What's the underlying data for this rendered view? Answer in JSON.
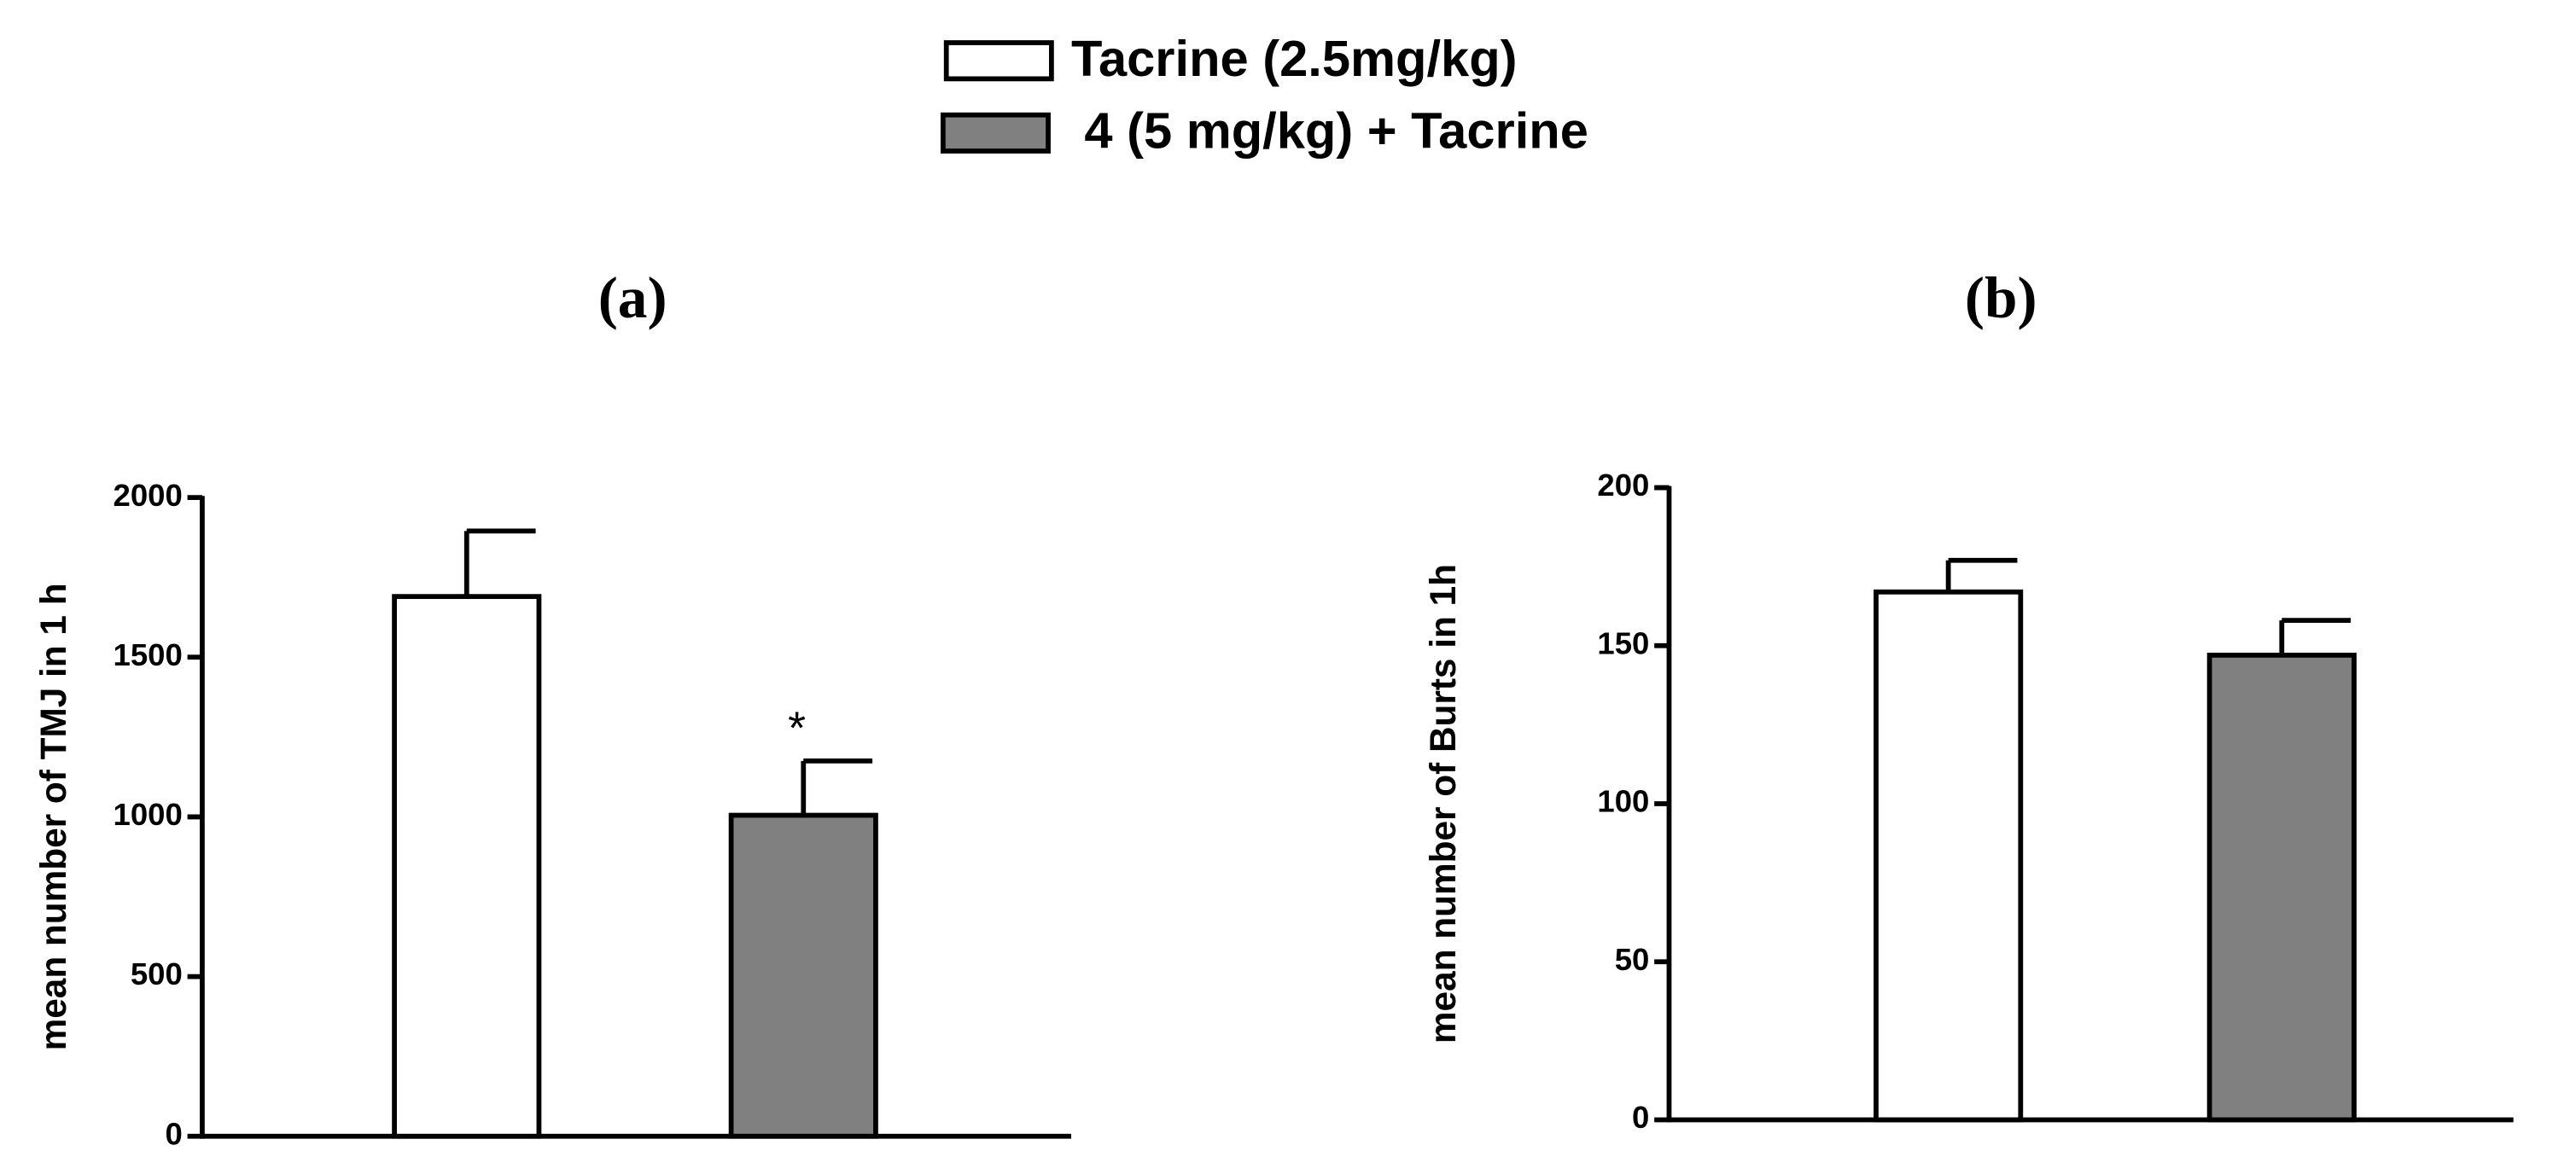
{
  "chart_data": [
    {
      "type": "bar",
      "title": "(a)",
      "ylabel": "mean number of TMJ in 1 h",
      "categories": [
        null
      ],
      "series": [
        {
          "name": "Tacrine (2.5mg/kg)",
          "color": "#ffffff",
          "values": [
            1690
          ],
          "errors": [
            205
          ]
        },
        {
          "name": "4 (5 mg/kg) + Tacrine",
          "color": "#808080",
          "values": [
            1005
          ],
          "errors": [
            170
          ]
        }
      ],
      "annotations": [
        "*"
      ],
      "ylim": [
        0,
        2000
      ],
      "yticks": [
        0,
        500,
        1000,
        1500,
        2000
      ]
    },
    {
      "type": "bar",
      "title": "(b)",
      "ylabel": "mean number of Burts in 1h",
      "categories": [
        null
      ],
      "series": [
        {
          "color": "#ffffff",
          "values": [
            167
          ],
          "errors": [
            10
          ]
        },
        {
          "color": "#808080",
          "values": [
            147
          ],
          "errors": [
            11
          ]
        }
      ],
      "ylim": [
        0,
        200
      ],
      "yticks": [
        0,
        50,
        100,
        150,
        200
      ]
    }
  ]
}
